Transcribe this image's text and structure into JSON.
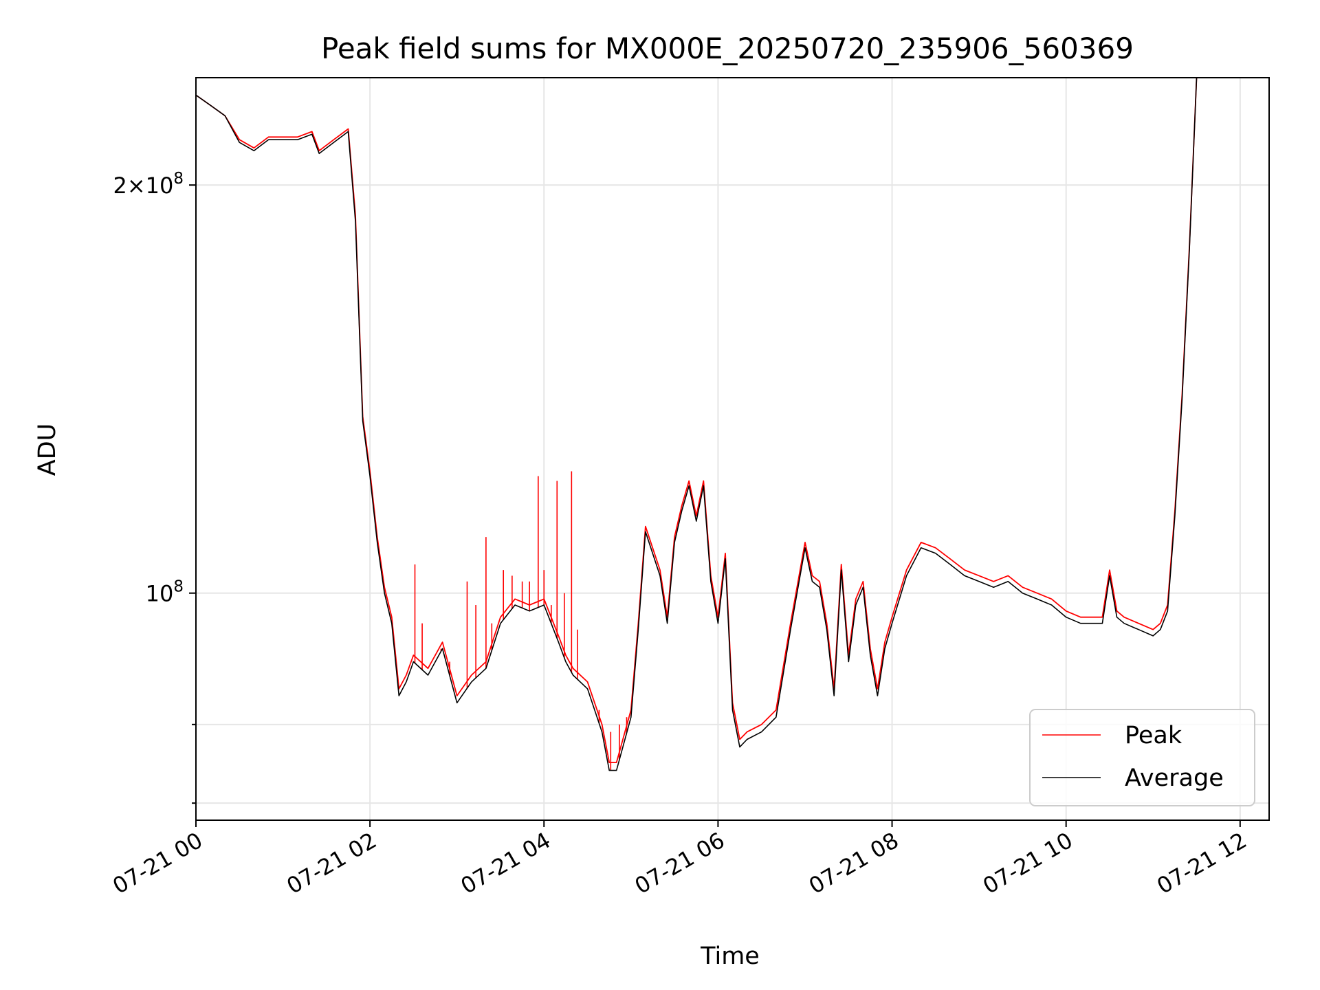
{
  "chart_data": {
    "type": "line",
    "title": "Peak field sums for MX000E_20250720_235906_560369",
    "xlabel": "Time",
    "ylabel": "ADU",
    "y_scale": "log",
    "ylim": [
      68000000,
      240000000
    ],
    "xlim": [
      "07-21 00:00",
      "07-21 12:20"
    ],
    "grid": true,
    "legend": "lower right",
    "x_ticks": [
      {
        "t": "07-21 00:00",
        "label": "07-21 00"
      },
      {
        "t": "07-21 02:00",
        "label": "07-21 02"
      },
      {
        "t": "07-21 04:00",
        "label": "07-21 04"
      },
      {
        "t": "07-21 06:00",
        "label": "07-21 06"
      },
      {
        "t": "07-21 08:00",
        "label": "07-21 08"
      },
      {
        "t": "07-21 10:00",
        "label": "07-21 10"
      },
      {
        "t": "07-21 12:00",
        "label": "07-21 12"
      }
    ],
    "y_major_ticks": [
      {
        "value": 100000000,
        "base": "10",
        "exponent": "8",
        "mantissa": ""
      },
      {
        "value": 200000000,
        "base": "10",
        "exponent": "8",
        "mantissa": "2"
      }
    ],
    "y_minor_gridlines": [
      70000000,
      80000000
    ],
    "series": [
      {
        "name": "Peak",
        "color": "#ff0000",
        "x": [
          "07-21 00:00",
          "07-21 00:10",
          "07-21 00:20",
          "07-21 00:30",
          "07-21 00:40",
          "07-21 00:50",
          "07-21 01:00",
          "07-21 01:10",
          "07-21 01:20",
          "07-21 01:25",
          "07-21 01:35",
          "07-21 01:45",
          "07-21 01:50",
          "07-21 01:55",
          "07-21 02:00",
          "07-21 02:05",
          "07-21 02:10",
          "07-21 02:15",
          "07-21 02:20",
          "07-21 02:25",
          "07-21 02:30",
          "07-21 02:40",
          "07-21 02:50",
          "07-21 03:00",
          "07-21 03:10",
          "07-21 03:20",
          "07-21 03:30",
          "07-21 03:40",
          "07-21 03:50",
          "07-21 04:00",
          "07-21 04:10",
          "07-21 04:15",
          "07-21 04:20",
          "07-21 04:30",
          "07-21 04:40",
          "07-21 04:45",
          "07-21 04:50",
          "07-21 05:00",
          "07-21 05:05",
          "07-21 05:10",
          "07-21 05:20",
          "07-21 05:25",
          "07-21 05:30",
          "07-21 05:35",
          "07-21 05:40",
          "07-21 05:45",
          "07-21 05:50",
          "07-21 05:55",
          "07-21 06:00",
          "07-21 06:05",
          "07-21 06:10",
          "07-21 06:15",
          "07-21 06:20",
          "07-21 06:30",
          "07-21 06:40",
          "07-21 06:50",
          "07-21 07:00",
          "07-21 07:05",
          "07-21 07:10",
          "07-21 07:15",
          "07-21 07:20",
          "07-21 07:25",
          "07-21 07:30",
          "07-21 07:35",
          "07-21 07:40",
          "07-21 07:45",
          "07-21 07:50",
          "07-21 07:55",
          "07-21 08:00",
          "07-21 08:10",
          "07-21 08:20",
          "07-21 08:30",
          "07-21 08:40",
          "07-21 08:50",
          "07-21 09:00",
          "07-21 09:10",
          "07-21 09:20",
          "07-21 09:30",
          "07-21 09:40",
          "07-21 09:50",
          "07-21 10:00",
          "07-21 10:10",
          "07-21 10:20",
          "07-21 10:25",
          "07-21 10:30",
          "07-21 10:35",
          "07-21 10:40",
          "07-21 10:50",
          "07-21 11:00",
          "07-21 11:05",
          "07-21 11:10",
          "07-21 11:15",
          "07-21 11:20",
          "07-21 11:25",
          "07-21 11:30",
          "07-21 11:35"
        ],
        "y": [
          233000000,
          229000000,
          225000000,
          216000000,
          213000000,
          217000000,
          217000000,
          217000000,
          219000000,
          212000000,
          216000000,
          220000000,
          190000000,
          135000000,
          123000000,
          110000000,
          101000000,
          96000000,
          85000000,
          87000000,
          90000000,
          88000000,
          92000000,
          84000000,
          87000000,
          89000000,
          96000000,
          99000000,
          98000000,
          99000000,
          93000000,
          90000000,
          88000000,
          86000000,
          80000000,
          75000000,
          75000000,
          82000000,
          95000000,
          112000000,
          104000000,
          96000000,
          110000000,
          116000000,
          121000000,
          114000000,
          121000000,
          103000000,
          96000000,
          107000000,
          83000000,
          78000000,
          79000000,
          80000000,
          82000000,
          95000000,
          109000000,
          103000000,
          102000000,
          95000000,
          85000000,
          105000000,
          90000000,
          99000000,
          102000000,
          91000000,
          85000000,
          92000000,
          96000000,
          104000000,
          109000000,
          108000000,
          106000000,
          104000000,
          103000000,
          102000000,
          103000000,
          101000000,
          100000000,
          99000000,
          97000000,
          96000000,
          96000000,
          96000000,
          104000000,
          97000000,
          96000000,
          95000000,
          94000000,
          95000000,
          98000000,
          115000000,
          140000000,
          180000000,
          240000000,
          240000000
        ]
      },
      {
        "name": "Average",
        "color": "#000000",
        "x": [
          "07-21 00:00",
          "07-21 00:10",
          "07-21 00:20",
          "07-21 00:30",
          "07-21 00:40",
          "07-21 00:50",
          "07-21 01:00",
          "07-21 01:10",
          "07-21 01:20",
          "07-21 01:25",
          "07-21 01:35",
          "07-21 01:45",
          "07-21 01:50",
          "07-21 01:55",
          "07-21 02:00",
          "07-21 02:05",
          "07-21 02:10",
          "07-21 02:15",
          "07-21 02:20",
          "07-21 02:25",
          "07-21 02:30",
          "07-21 02:40",
          "07-21 02:50",
          "07-21 03:00",
          "07-21 03:10",
          "07-21 03:20",
          "07-21 03:30",
          "07-21 03:40",
          "07-21 03:50",
          "07-21 04:00",
          "07-21 04:10",
          "07-21 04:15",
          "07-21 04:20",
          "07-21 04:30",
          "07-21 04:40",
          "07-21 04:45",
          "07-21 04:50",
          "07-21 05:00",
          "07-21 05:05",
          "07-21 05:10",
          "07-21 05:20",
          "07-21 05:25",
          "07-21 05:30",
          "07-21 05:35",
          "07-21 05:40",
          "07-21 05:45",
          "07-21 05:50",
          "07-21 05:55",
          "07-21 06:00",
          "07-21 06:05",
          "07-21 06:10",
          "07-21 06:15",
          "07-21 06:20",
          "07-21 06:30",
          "07-21 06:40",
          "07-21 06:50",
          "07-21 07:00",
          "07-21 07:05",
          "07-21 07:10",
          "07-21 07:15",
          "07-21 07:20",
          "07-21 07:25",
          "07-21 07:30",
          "07-21 07:35",
          "07-21 07:40",
          "07-21 07:45",
          "07-21 07:50",
          "07-21 07:55",
          "07-21 08:00",
          "07-21 08:10",
          "07-21 08:20",
          "07-21 08:30",
          "07-21 08:40",
          "07-21 08:50",
          "07-21 09:00",
          "07-21 09:10",
          "07-21 09:20",
          "07-21 09:30",
          "07-21 09:40",
          "07-21 09:50",
          "07-21 10:00",
          "07-21 10:10",
          "07-21 10:20",
          "07-21 10:25",
          "07-21 10:30",
          "07-21 10:35",
          "07-21 10:40",
          "07-21 10:50",
          "07-21 11:00",
          "07-21 11:05",
          "07-21 11:10",
          "07-21 11:15",
          "07-21 11:20",
          "07-21 11:25",
          "07-21 11:30",
          "07-21 11:35"
        ],
        "y": [
          233000000,
          229000000,
          225000000,
          215000000,
          212000000,
          216000000,
          216000000,
          216000000,
          218000000,
          211000000,
          215000000,
          219000000,
          188000000,
          134000000,
          122000000,
          109000000,
          100000000,
          95000000,
          84000000,
          86000000,
          89000000,
          87000000,
          91000000,
          83000000,
          86000000,
          88000000,
          95000000,
          98000000,
          97000000,
          98000000,
          92000000,
          89000000,
          87000000,
          85000000,
          79000000,
          74000000,
          74000000,
          81000000,
          94000000,
          111000000,
          103000000,
          95000000,
          109000000,
          115000000,
          120000000,
          113000000,
          120000000,
          102000000,
          95000000,
          106000000,
          82000000,
          77000000,
          78000000,
          79000000,
          81000000,
          94000000,
          108000000,
          102000000,
          101000000,
          94000000,
          84000000,
          104000000,
          89000000,
          98000000,
          101000000,
          90000000,
          84000000,
          91000000,
          95000000,
          103000000,
          108000000,
          107000000,
          105000000,
          103000000,
          102000000,
          101000000,
          102000000,
          100000000,
          99000000,
          98000000,
          96000000,
          95000000,
          95000000,
          95000000,
          103000000,
          96000000,
          95000000,
          94000000,
          93000000,
          94000000,
          97000000,
          114000000,
          139000000,
          179000000,
          240000000,
          240000000
        ]
      }
    ],
    "peak_spikes": [
      {
        "t": "07-21 02:31",
        "value": 105000000
      },
      {
        "t": "07-21 02:36",
        "value": 95000000
      },
      {
        "t": "07-21 02:49",
        "value": 91000000
      },
      {
        "t": "07-21 02:55",
        "value": 89000000
      },
      {
        "t": "07-21 03:07",
        "value": 102000000
      },
      {
        "t": "07-21 03:13",
        "value": 98000000
      },
      {
        "t": "07-21 03:20",
        "value": 110000000
      },
      {
        "t": "07-21 03:24",
        "value": 95000000
      },
      {
        "t": "07-21 03:32",
        "value": 104000000
      },
      {
        "t": "07-21 03:38",
        "value": 103000000
      },
      {
        "t": "07-21 03:45",
        "value": 102000000
      },
      {
        "t": "07-21 03:50",
        "value": 102000000
      },
      {
        "t": "07-21 03:56",
        "value": 122000000
      },
      {
        "t": "07-21 04:00",
        "value": 104000000
      },
      {
        "t": "07-21 04:05",
        "value": 98000000
      },
      {
        "t": "07-21 04:09",
        "value": 121000000
      },
      {
        "t": "07-21 04:14",
        "value": 100000000
      },
      {
        "t": "07-21 04:19",
        "value": 123000000
      },
      {
        "t": "07-21 04:23",
        "value": 94000000
      },
      {
        "t": "07-21 04:38",
        "value": 82000000
      },
      {
        "t": "07-21 04:46",
        "value": 79000000
      },
      {
        "t": "07-21 04:52",
        "value": 80000000
      },
      {
        "t": "07-21 04:57",
        "value": 81000000
      }
    ]
  }
}
